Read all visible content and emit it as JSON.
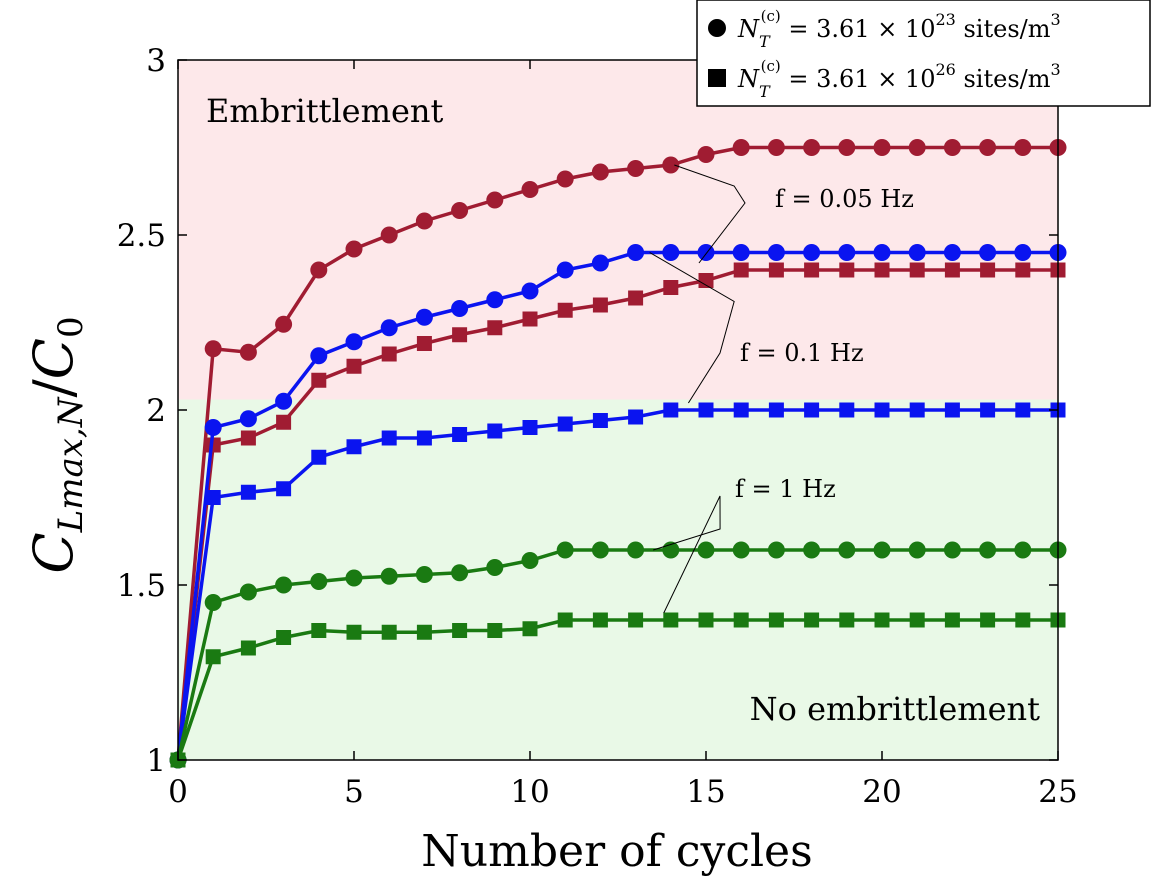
{
  "chart_data": {
    "type": "line",
    "xlabel": "Number of cycles",
    "ylabel": "C_Lmax,N/C_0",
    "xlim": [
      0,
      25
    ],
    "ylim": [
      1,
      3
    ],
    "xticks": [
      "0",
      "5",
      "10",
      "15",
      "20",
      "25"
    ],
    "yticks": [
      "1",
      "1.5",
      "2",
      "2.5",
      "3"
    ],
    "grid": false,
    "regions": [
      {
        "label": "Embrittlement",
        "y_from": 2.03,
        "y_to": 3,
        "color": "#fde8ea"
      },
      {
        "label": "No embrittlement",
        "y_from": 1,
        "y_to": 2.03,
        "color": "#e9f9e7"
      }
    ],
    "legend": {
      "placement": "top-right",
      "entries": [
        {
          "marker": "circle",
          "text": "N_T^(c) = 3.61 × 10^23 sites/m^3"
        },
        {
          "marker": "square",
          "text": "N_T^(c) = 3.61 × 10^26 sites/m^3"
        }
      ]
    },
    "annotations": [
      "f = 0.05 Hz",
      "f = 0.1 Hz",
      "f = 1 Hz"
    ],
    "x": [
      0,
      1,
      2,
      3,
      4,
      5,
      6,
      7,
      8,
      9,
      10,
      11,
      12,
      13,
      14,
      15,
      16,
      17,
      18,
      19,
      20,
      21,
      22,
      23,
      24,
      25
    ],
    "series": [
      {
        "frequency": "f = 0.05 Hz",
        "marker": "circle",
        "color": "#a01c32",
        "values": [
          1.0,
          2.175,
          2.165,
          2.245,
          2.4,
          2.46,
          2.5,
          2.54,
          2.57,
          2.6,
          2.63,
          2.66,
          2.68,
          2.69,
          2.7,
          2.73,
          2.75,
          2.75,
          2.75,
          2.75,
          2.75,
          2.75,
          2.75,
          2.75,
          2.75,
          2.75
        ]
      },
      {
        "frequency": "f = 0.05 Hz",
        "marker": "square",
        "color": "#a01c32",
        "values": [
          1.0,
          1.9,
          1.92,
          1.965,
          2.085,
          2.125,
          2.16,
          2.19,
          2.215,
          2.235,
          2.26,
          2.285,
          2.3,
          2.32,
          2.35,
          2.37,
          2.4,
          2.4,
          2.4,
          2.4,
          2.4,
          2.4,
          2.4,
          2.4,
          2.4,
          2.4
        ]
      },
      {
        "frequency": "f = 0.1 Hz",
        "marker": "circle",
        "color": "#0a14f0",
        "values": [
          1.0,
          1.95,
          1.975,
          2.025,
          2.155,
          2.195,
          2.235,
          2.265,
          2.29,
          2.315,
          2.34,
          2.4,
          2.42,
          2.45,
          2.45,
          2.45,
          2.45,
          2.45,
          2.45,
          2.45,
          2.45,
          2.45,
          2.45,
          2.45,
          2.45,
          2.45
        ]
      },
      {
        "frequency": "f = 0.1 Hz",
        "marker": "square",
        "color": "#0a14f0",
        "values": [
          1.0,
          1.75,
          1.765,
          1.775,
          1.865,
          1.895,
          1.92,
          1.92,
          1.93,
          1.94,
          1.95,
          1.96,
          1.97,
          1.98,
          2.0,
          2.0,
          2.0,
          2.0,
          2.0,
          2.0,
          2.0,
          2.0,
          2.0,
          2.0,
          2.0,
          2.0
        ]
      },
      {
        "frequency": "f = 1 Hz",
        "marker": "circle",
        "color": "#1a7a12",
        "values": [
          1.0,
          1.45,
          1.48,
          1.5,
          1.51,
          1.52,
          1.525,
          1.53,
          1.535,
          1.55,
          1.57,
          1.6,
          1.6,
          1.6,
          1.6,
          1.6,
          1.6,
          1.6,
          1.6,
          1.6,
          1.6,
          1.6,
          1.6,
          1.6,
          1.6,
          1.6
        ]
      },
      {
        "frequency": "f = 1 Hz",
        "marker": "square",
        "color": "#1a7a12",
        "values": [
          1.0,
          1.295,
          1.32,
          1.35,
          1.37,
          1.365,
          1.365,
          1.365,
          1.37,
          1.37,
          1.375,
          1.4,
          1.4,
          1.4,
          1.4,
          1.4,
          1.4,
          1.4,
          1.4,
          1.4,
          1.4,
          1.4,
          1.4,
          1.4,
          1.4,
          1.4
        ]
      }
    ]
  }
}
